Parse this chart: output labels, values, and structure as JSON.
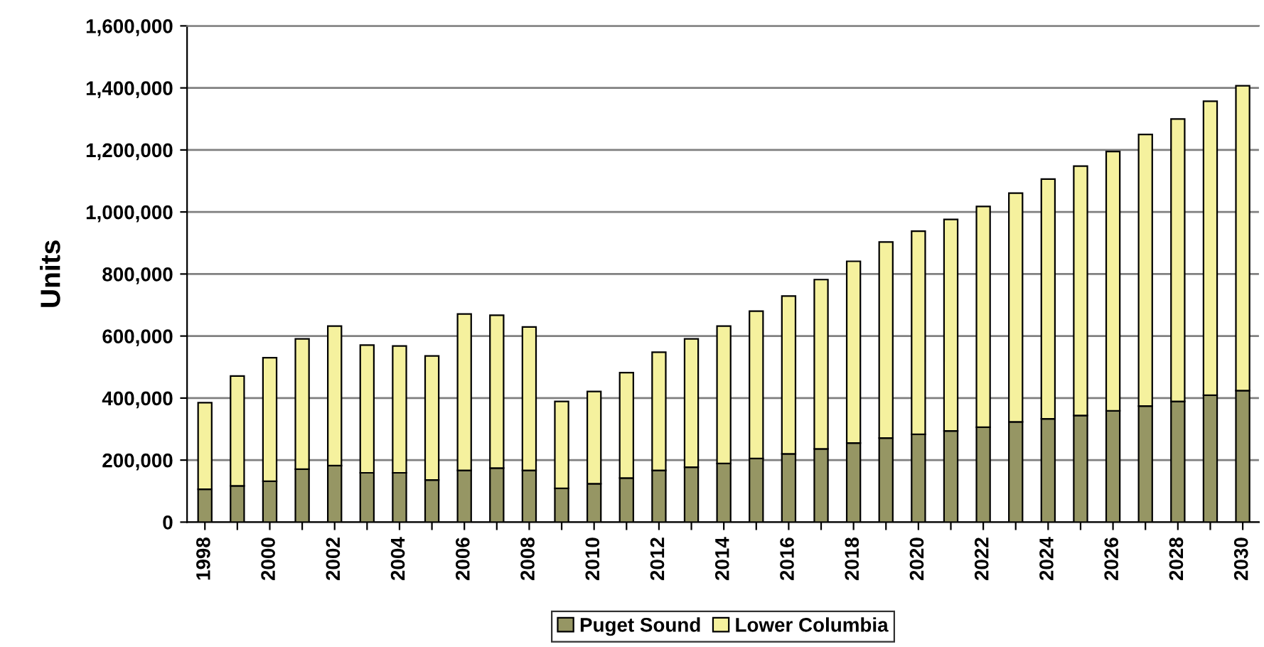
{
  "chart_data": {
    "type": "bar",
    "stacked": true,
    "ylabel": "Units",
    "categories": [
      "1998",
      null,
      "2000",
      null,
      "2002",
      null,
      "2004",
      null,
      "2006",
      null,
      "2008",
      null,
      "2010",
      null,
      "2012",
      null,
      "2014",
      null,
      "2016",
      null,
      "2018",
      null,
      "2020",
      null,
      "2022",
      null,
      "2024",
      null,
      "2026",
      null,
      "2028",
      null,
      "2030"
    ],
    "series": [
      {
        "name": "Puget Sound",
        "color": "#969664",
        "values": [
          106000,
          117000,
          132000,
          171000,
          182000,
          159000,
          159000,
          136000,
          167000,
          174000,
          167000,
          109000,
          124000,
          142000,
          167000,
          177000,
          189000,
          205000,
          220000,
          236000,
          255000,
          271000,
          283000,
          294000,
          306000,
          323000,
          333000,
          344000,
          359000,
          374000,
          389000,
          409000,
          424000
        ]
      },
      {
        "name": "Lower Columbia",
        "color": "#f5f19e",
        "values": [
          279000,
          354000,
          398000,
          420000,
          450000,
          412000,
          409000,
          400000,
          504000,
          493000,
          462000,
          280000,
          297000,
          340000,
          381000,
          414000,
          443000,
          475000,
          509000,
          546000,
          586000,
          632000,
          655000,
          682000,
          712000,
          738000,
          773000,
          804000,
          836000,
          876000,
          911000,
          948000,
          983000
        ]
      }
    ],
    "ylim": [
      0,
      1600000
    ],
    "yticks": [
      0,
      {
        "value": 200000,
        "label": "200,000"
      },
      {
        "value": 400000,
        "label": "400,000"
      },
      {
        "value": 600000,
        "label": "600,000"
      },
      {
        "value": 800000,
        "label": "800,000"
      },
      {
        "value": 1000000,
        "label": "1,000,000"
      },
      {
        "value": 1200000,
        "label": "1,200,000"
      },
      {
        "value": 1400000,
        "label": "1,400,000"
      },
      {
        "value": 1600000,
        "label": "1,600,000"
      }
    ],
    "grid": "y",
    "legend": "bottom"
  }
}
